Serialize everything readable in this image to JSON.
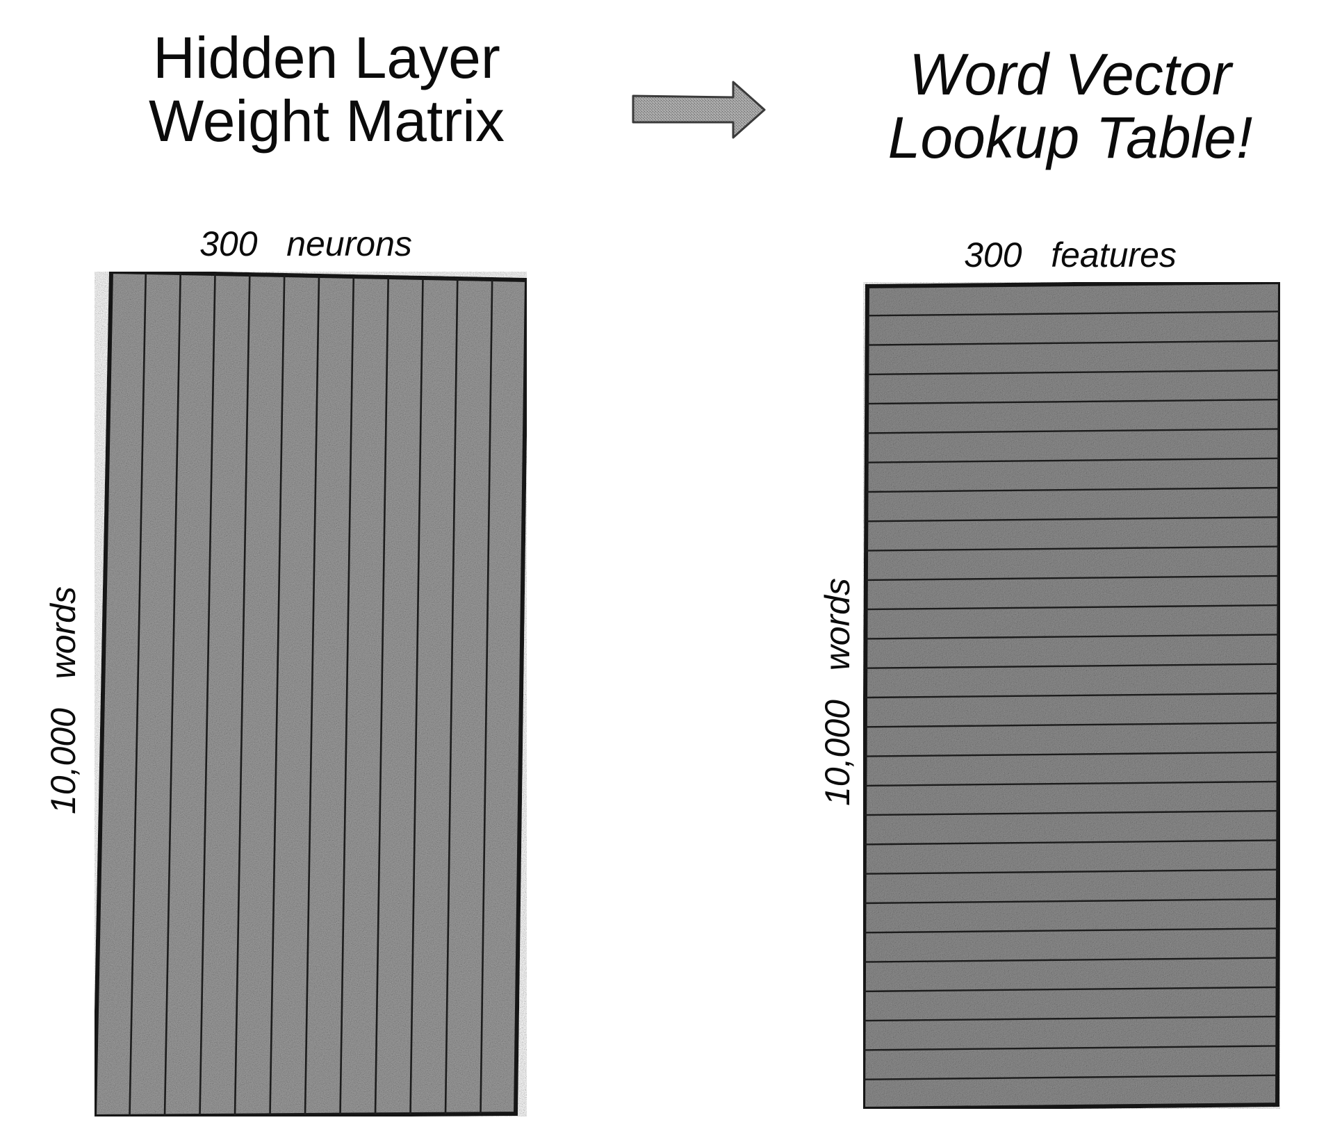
{
  "left": {
    "title_line1": "Hidden Layer",
    "title_line2": "Weight Matrix",
    "top_label": "300   neurons",
    "side_label": "10,000   words"
  },
  "right": {
    "title_line1": "Word Vector",
    "title_line2": "Lookup Table!",
    "top_label": "300   features",
    "side_label": "10,000   words"
  },
  "colors": {
    "matrix_fill": "#8f8f8f",
    "matrix_border": "#1a1a1a",
    "grid_line": "#1c1c1c",
    "arrow_fill": "#9a9a9a",
    "arrow_stroke": "#3a3a3a"
  }
}
